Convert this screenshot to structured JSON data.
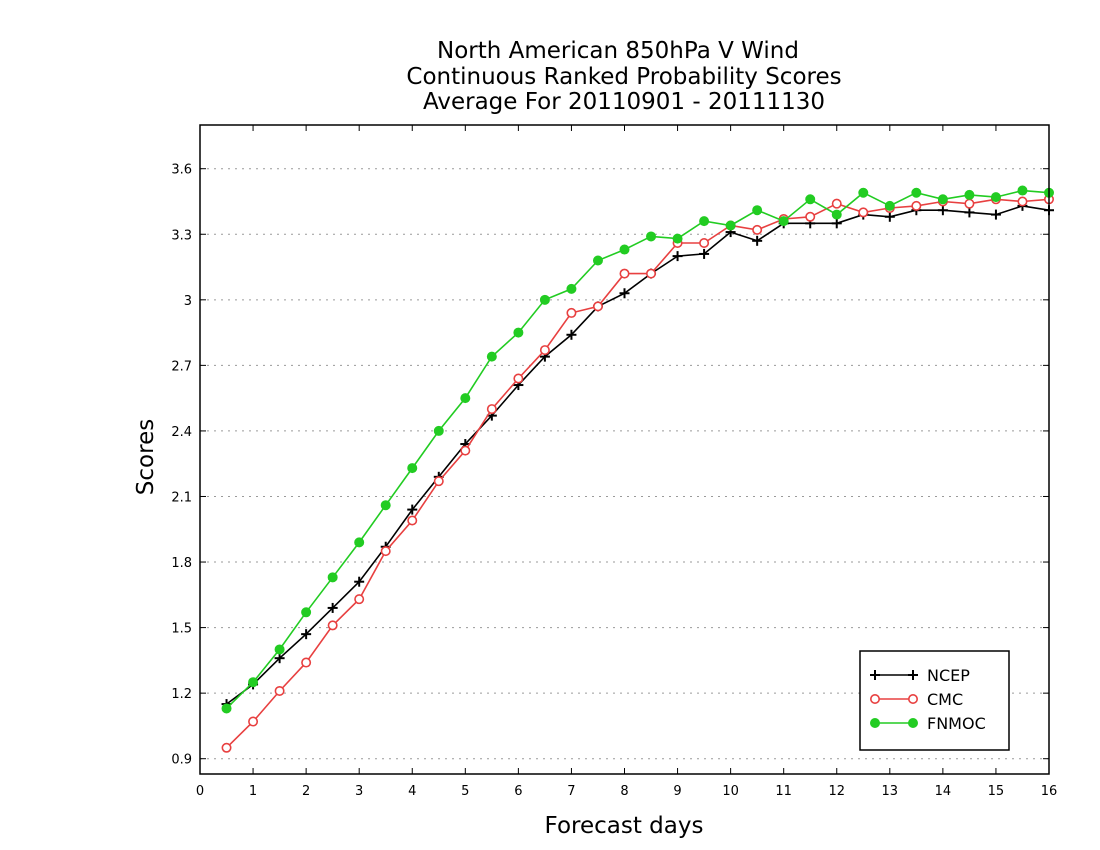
{
  "chart_data": {
    "type": "line",
    "title": [
      "North American 850hPa V Wind",
      "Continuous Ranked Probability Scores",
      "Average For 20110901 - 20111130"
    ],
    "xlabel": "Forecast days",
    "ylabel": "Scores",
    "xlim": [
      0,
      16
    ],
    "ylim": [
      0.83,
      3.8
    ],
    "xticks": [
      0,
      1,
      2,
      3,
      4,
      5,
      6,
      7,
      8,
      9,
      10,
      11,
      12,
      13,
      14,
      15,
      16
    ],
    "xtick_labels": [
      "0",
      "1",
      "2",
      "3",
      "4",
      "5",
      "6",
      "7",
      "8",
      "9",
      "10",
      "11",
      "12",
      "13",
      "14",
      "15",
      "16"
    ],
    "yticks": [
      0.9,
      1.2,
      1.5,
      1.8,
      2.1,
      2.4,
      2.7,
      3.0,
      3.3,
      3.6
    ],
    "ytick_labels": [
      "0.9",
      "1.2",
      "1.5",
      "1.8",
      "2.1",
      "2.4",
      "2.7",
      "3",
      "3.3",
      "3.6"
    ],
    "grid": "horizontal dotted",
    "legend_position": "bottom-right",
    "x": [
      0.5,
      1.0,
      1.5,
      2.0,
      2.5,
      3.0,
      3.5,
      4.0,
      4.5,
      5.0,
      5.5,
      6.0,
      6.5,
      7.0,
      7.5,
      8.0,
      8.5,
      9.0,
      9.5,
      10.0,
      10.5,
      11.0,
      11.5,
      12.0,
      12.5,
      13.0,
      13.5,
      14.0,
      14.5,
      15.0,
      15.5,
      16.0
    ],
    "series": [
      {
        "name": "NCEP",
        "color": "#000000",
        "marker": "plus",
        "values": [
          1.15,
          1.24,
          1.36,
          1.47,
          1.59,
          1.71,
          1.87,
          2.04,
          2.19,
          2.34,
          2.47,
          2.61,
          2.74,
          2.84,
          2.97,
          3.03,
          3.12,
          3.2,
          3.21,
          3.31,
          3.27,
          3.35,
          3.35,
          3.35,
          3.39,
          3.38,
          3.41,
          3.41,
          3.4,
          3.39,
          3.43,
          3.41
        ]
      },
      {
        "name": "CMC",
        "color": "#e84040",
        "marker": "open-circle",
        "values": [
          0.95,
          1.07,
          1.21,
          1.34,
          1.51,
          1.63,
          1.85,
          1.99,
          2.17,
          2.31,
          2.5,
          2.64,
          2.77,
          2.94,
          2.97,
          3.12,
          3.12,
          3.26,
          3.26,
          3.34,
          3.32,
          3.37,
          3.38,
          3.44,
          3.4,
          3.42,
          3.43,
          3.45,
          3.44,
          3.46,
          3.45,
          3.46
        ]
      },
      {
        "name": "FNMOC",
        "color": "#22cc22",
        "marker": "filled-circle",
        "values": [
          1.13,
          1.25,
          1.4,
          1.57,
          1.73,
          1.89,
          2.06,
          2.23,
          2.4,
          2.55,
          2.74,
          2.85,
          3.0,
          3.05,
          3.18,
          3.23,
          3.29,
          3.28,
          3.36,
          3.34,
          3.41,
          3.36,
          3.46,
          3.39,
          3.49,
          3.43,
          3.49,
          3.46,
          3.48,
          3.47,
          3.5,
          3.49
        ]
      }
    ]
  }
}
